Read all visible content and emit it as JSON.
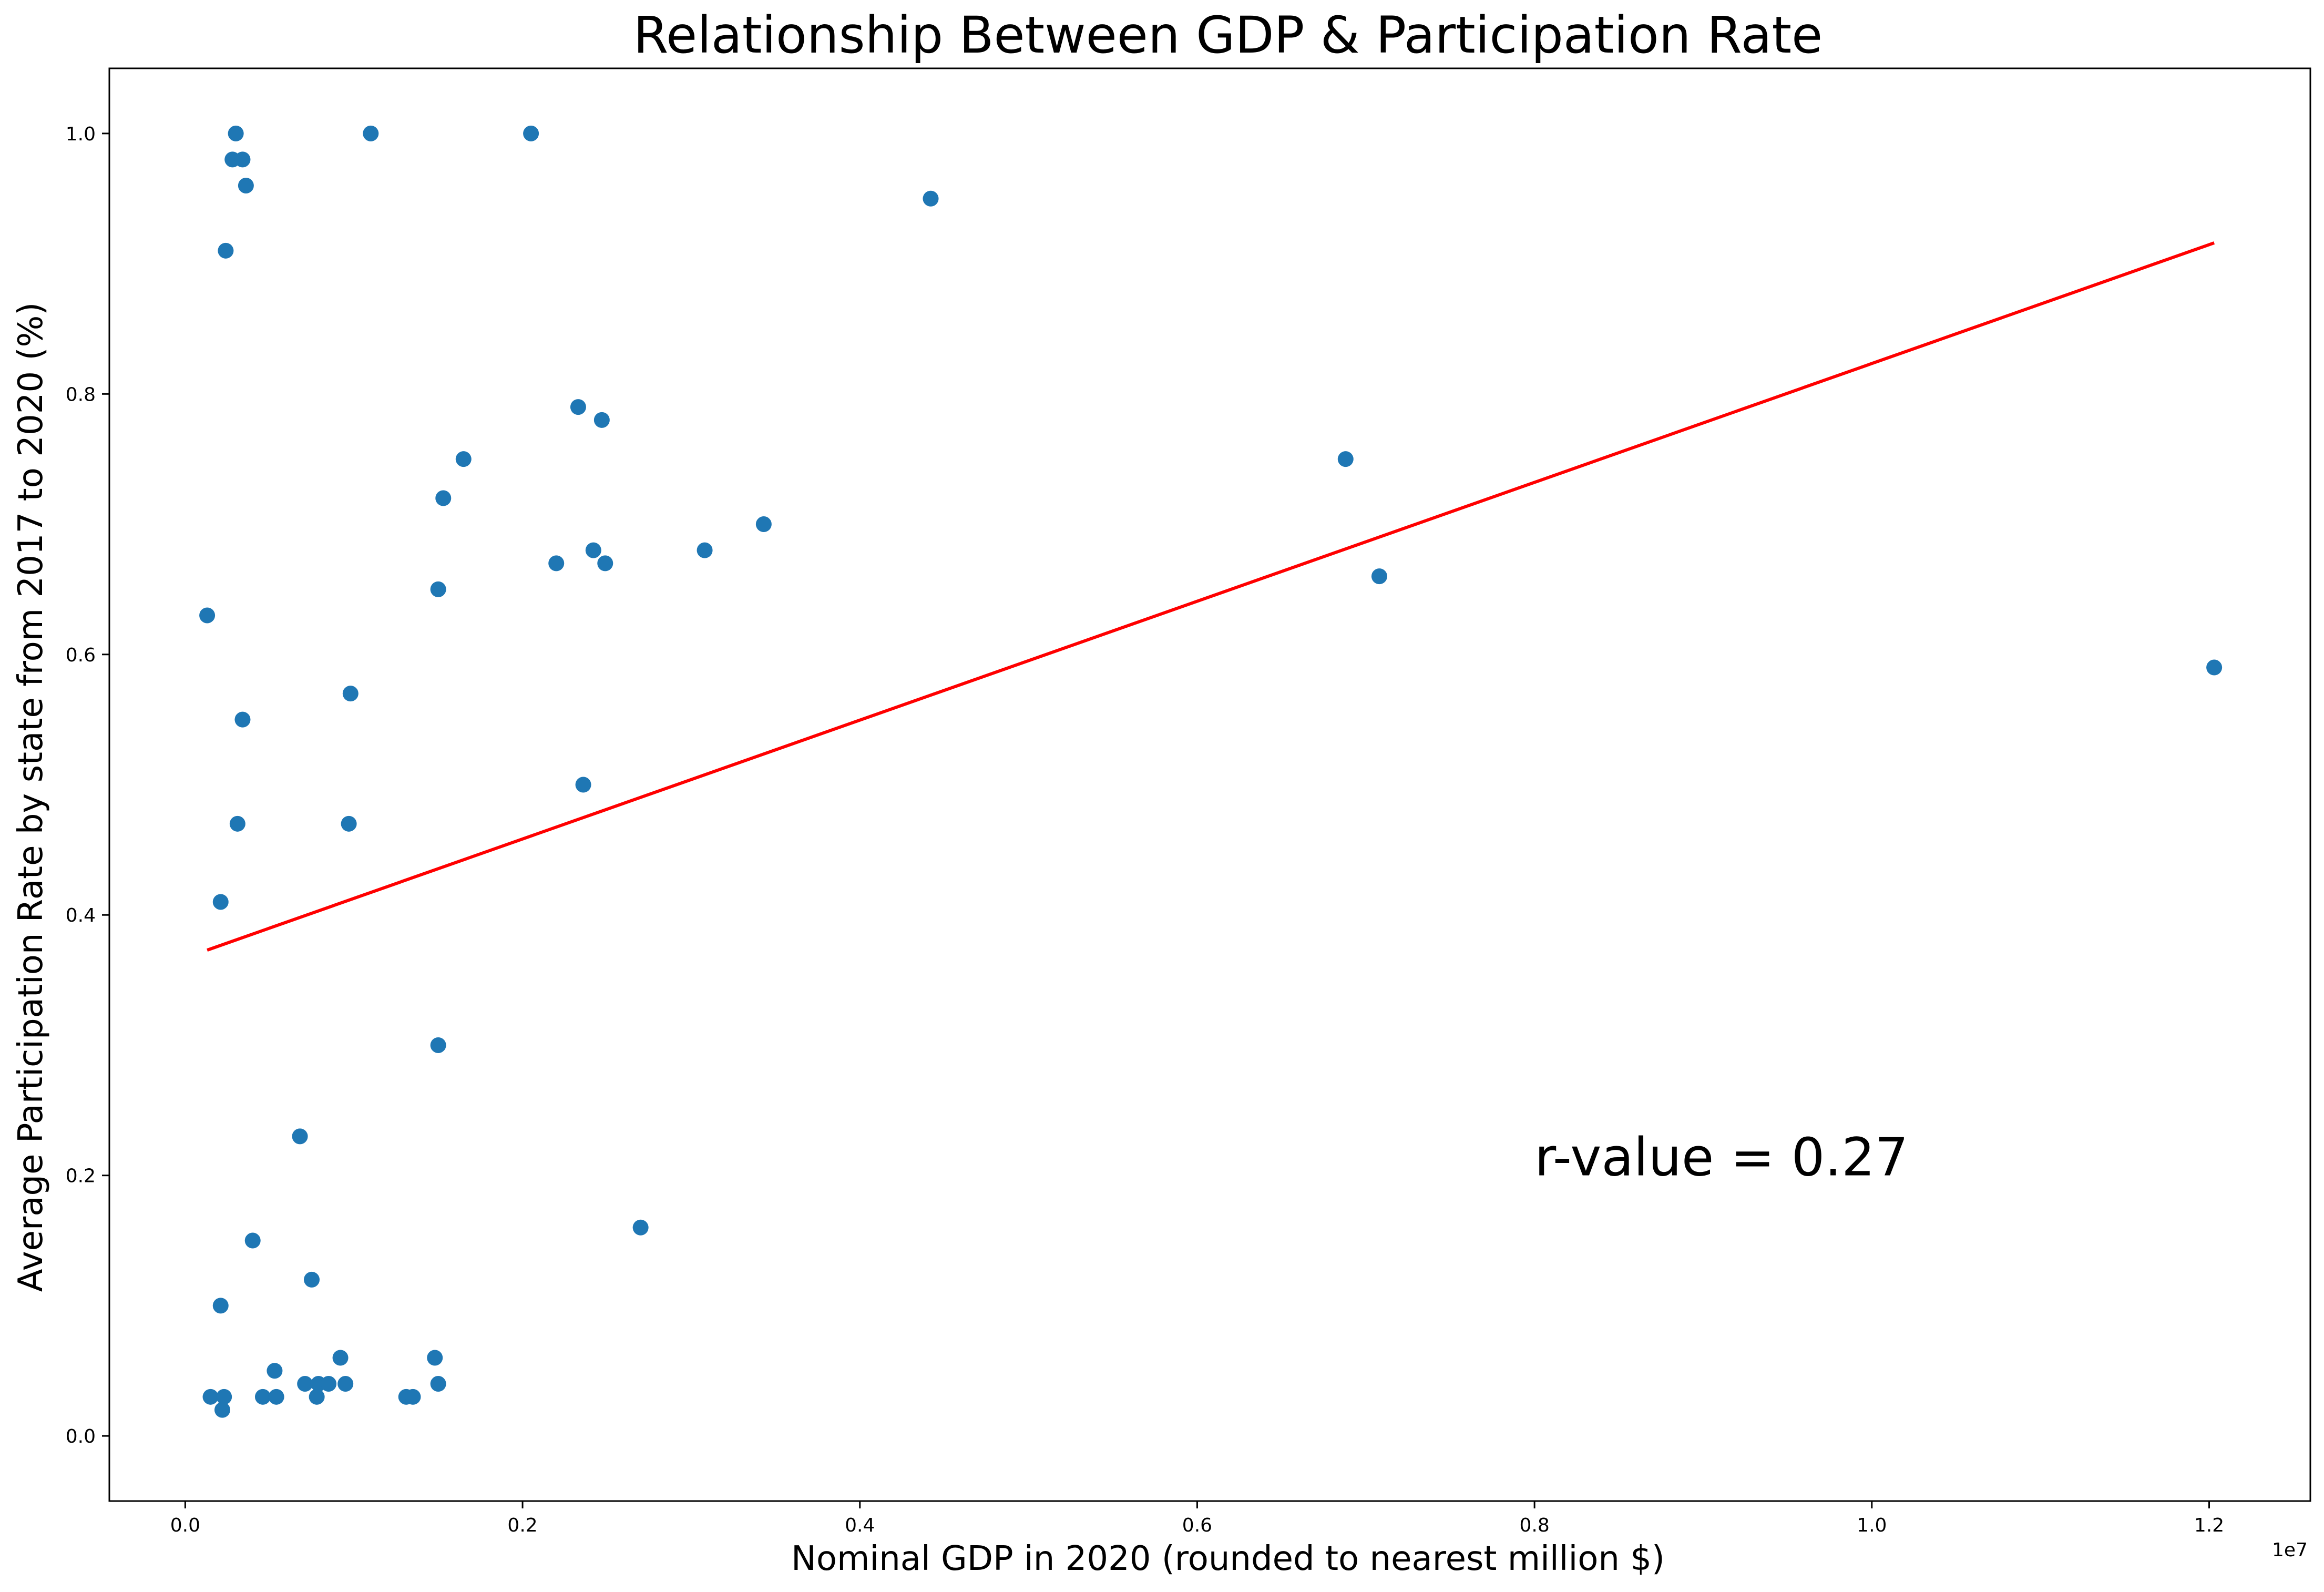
{
  "chart_data": {
    "type": "scatter",
    "title": "Relationship Between GDP & Participation Rate",
    "xlabel": "Nominal GDP in 2020 (rounded to nearest million $)",
    "ylabel": "Average Participation Rate by state from 2017 to 2020 (%)",
    "x_offset_label": "1e7",
    "xlim": [
      -0.045,
      1.26
    ],
    "ylim": [
      -0.05,
      1.05
    ],
    "x_ticks": [
      0.0,
      0.2,
      0.4,
      0.6,
      0.8,
      1.0,
      1.2
    ],
    "x_tick_labels": [
      "0.0",
      "0.2",
      "0.4",
      "0.6",
      "0.8",
      "1.0",
      "1.2"
    ],
    "y_ticks": [
      0.0,
      0.2,
      0.4,
      0.6,
      0.8,
      1.0
    ],
    "y_tick_labels": [
      "0.0",
      "0.2",
      "0.4",
      "0.6",
      "0.8",
      "1.0"
    ],
    "grid": false,
    "point_color": "#1f77b4",
    "line_color": "#ff0000",
    "points": [
      {
        "x": 0.03,
        "y": 1.0
      },
      {
        "x": 0.11,
        "y": 1.0
      },
      {
        "x": 0.205,
        "y": 1.0
      },
      {
        "x": 0.028,
        "y": 0.98
      },
      {
        "x": 0.034,
        "y": 0.98
      },
      {
        "x": 0.036,
        "y": 0.96
      },
      {
        "x": 0.024,
        "y": 0.91
      },
      {
        "x": 0.442,
        "y": 0.95
      },
      {
        "x": 0.233,
        "y": 0.79
      },
      {
        "x": 0.247,
        "y": 0.78
      },
      {
        "x": 0.165,
        "y": 0.75
      },
      {
        "x": 0.688,
        "y": 0.75
      },
      {
        "x": 0.153,
        "y": 0.72
      },
      {
        "x": 0.343,
        "y": 0.7
      },
      {
        "x": 0.22,
        "y": 0.67
      },
      {
        "x": 0.242,
        "y": 0.68
      },
      {
        "x": 0.249,
        "y": 0.67
      },
      {
        "x": 0.308,
        "y": 0.68
      },
      {
        "x": 0.708,
        "y": 0.66
      },
      {
        "x": 0.15,
        "y": 0.65
      },
      {
        "x": 0.013,
        "y": 0.63
      },
      {
        "x": 1.203,
        "y": 0.59
      },
      {
        "x": 0.098,
        "y": 0.57
      },
      {
        "x": 0.034,
        "y": 0.55
      },
      {
        "x": 0.236,
        "y": 0.5
      },
      {
        "x": 0.031,
        "y": 0.47
      },
      {
        "x": 0.097,
        "y": 0.47
      },
      {
        "x": 0.021,
        "y": 0.41
      },
      {
        "x": 0.15,
        "y": 0.3
      },
      {
        "x": 0.068,
        "y": 0.23
      },
      {
        "x": 0.27,
        "y": 0.16
      },
      {
        "x": 0.04,
        "y": 0.15
      },
      {
        "x": 0.075,
        "y": 0.12
      },
      {
        "x": 0.021,
        "y": 0.1
      },
      {
        "x": 0.092,
        "y": 0.06
      },
      {
        "x": 0.148,
        "y": 0.06
      },
      {
        "x": 0.053,
        "y": 0.05
      },
      {
        "x": 0.071,
        "y": 0.04
      },
      {
        "x": 0.079,
        "y": 0.04
      },
      {
        "x": 0.085,
        "y": 0.04
      },
      {
        "x": 0.095,
        "y": 0.04
      },
      {
        "x": 0.15,
        "y": 0.04
      },
      {
        "x": 0.015,
        "y": 0.03
      },
      {
        "x": 0.023,
        "y": 0.03
      },
      {
        "x": 0.046,
        "y": 0.03
      },
      {
        "x": 0.054,
        "y": 0.03
      },
      {
        "x": 0.078,
        "y": 0.03
      },
      {
        "x": 0.131,
        "y": 0.03
      },
      {
        "x": 0.135,
        "y": 0.03
      },
      {
        "x": 0.022,
        "y": 0.02
      }
    ],
    "regression_line": {
      "x": [
        0.013,
        1.203
      ],
      "y": [
        0.373,
        0.916
      ]
    },
    "annotations": [
      {
        "text": "r-value = 0.27",
        "x": 0.8,
        "y": 0.2
      }
    ]
  }
}
